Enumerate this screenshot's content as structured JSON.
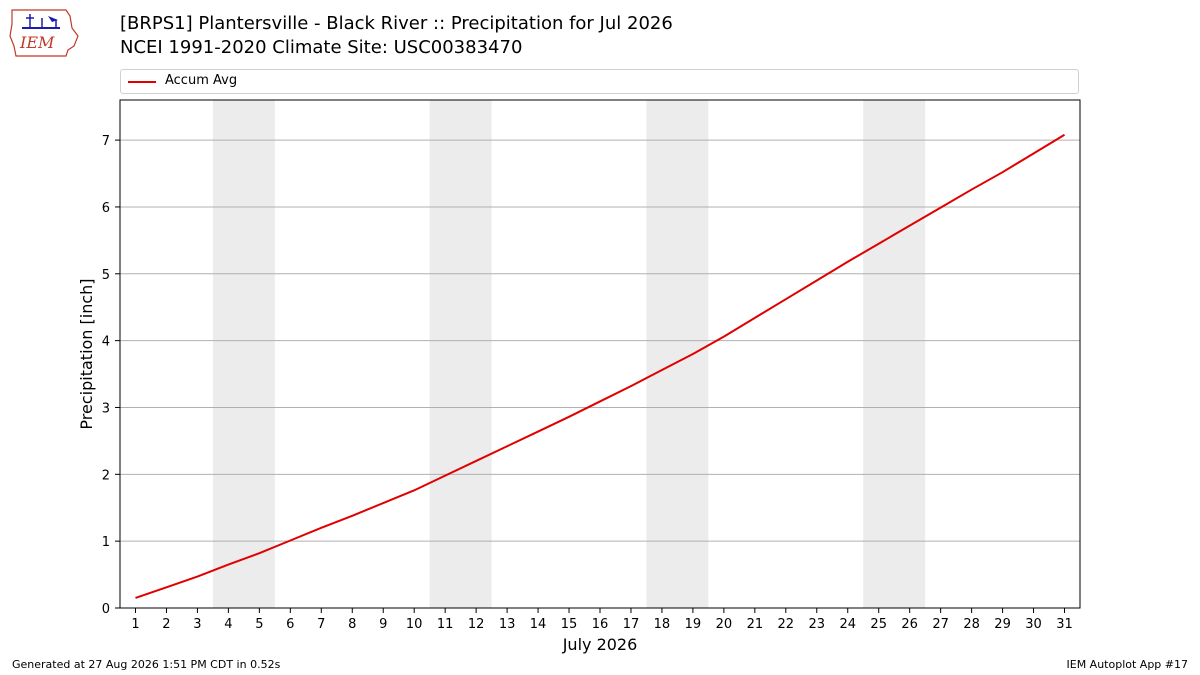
{
  "header": {
    "title_line1": "[BRPS1] Plantersville - Black River :: Precipitation for Jul 2026",
    "title_line2": "NCEI 1991-2020 Climate Site: USC00383470"
  },
  "logo": {
    "text": "IEM",
    "icon": "iem-iowa-logo-icon"
  },
  "colors": {
    "line": "#e00000",
    "weekend_band": "#ececec",
    "grid": "#b0b0b0"
  },
  "chart_data": {
    "type": "line",
    "xlabel": "July 2026",
    "ylabel": "Precipitation [inch]",
    "xlim": [
      0.5,
      31.5
    ],
    "ylim": [
      0,
      7.6
    ],
    "yticks": [
      0,
      1,
      2,
      3,
      4,
      5,
      6,
      7
    ],
    "x": [
      1,
      2,
      3,
      4,
      5,
      6,
      7,
      8,
      9,
      10,
      11,
      12,
      13,
      14,
      15,
      16,
      17,
      18,
      19,
      20,
      21,
      22,
      23,
      24,
      25,
      26,
      27,
      28,
      29,
      30,
      31
    ],
    "xtick_labels": [
      "1",
      "2",
      "3",
      "4",
      "5",
      "6",
      "7",
      "8",
      "9",
      "10",
      "11",
      "12",
      "13",
      "14",
      "15",
      "16",
      "17",
      "18",
      "19",
      "20",
      "21",
      "22",
      "23",
      "24",
      "25",
      "26",
      "27",
      "28",
      "29",
      "30",
      "31"
    ],
    "weekend_bands": [
      [
        3.5,
        5.5
      ],
      [
        10.5,
        12.5
      ],
      [
        17.5,
        19.5
      ],
      [
        24.5,
        26.5
      ]
    ],
    "grid": "horizontal",
    "legend_position": "top",
    "series": [
      {
        "name": "Accum Avg",
        "values": [
          0.15,
          0.31,
          0.47,
          0.65,
          0.82,
          1.01,
          1.2,
          1.38,
          1.57,
          1.76,
          1.98,
          2.2,
          2.42,
          2.64,
          2.86,
          3.09,
          3.32,
          3.56,
          3.8,
          4.06,
          4.34,
          4.62,
          4.9,
          5.18,
          5.45,
          5.72,
          5.99,
          6.26,
          6.52,
          6.8,
          7.08
        ]
      }
    ]
  },
  "footer": {
    "generated": "Generated at 27 Aug 2026 1:51 PM CDT in 0.52s",
    "app": "IEM Autoplot App #17"
  }
}
